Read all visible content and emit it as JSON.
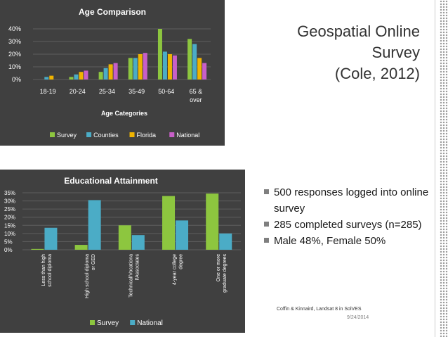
{
  "slide": {
    "title_lines": [
      "Geospatial Online",
      "Survey",
      "(Cole, 2012)"
    ],
    "bullets": [
      "500 responses logged into online survey",
      "285 completed surveys (n=285)",
      "Male 48%, Female 50%"
    ],
    "credit": "Coffin & Kinnaird, Landsat 8 in SolVES",
    "date": "9/24/2014"
  },
  "chart_data": [
    {
      "type": "bar",
      "title": "Age Comparison",
      "xlabel": "Age Categories",
      "ylabel": "",
      "ylim": [
        0,
        40
      ],
      "yticks": [
        "0%",
        "10%",
        "20%",
        "30%",
        "40%"
      ],
      "grid": true,
      "legend_position": "bottom",
      "categories": [
        [
          "18-19"
        ],
        [
          "20-24"
        ],
        [
          "25-34"
        ],
        [
          "35-49"
        ],
        [
          "50-64"
        ],
        [
          "65 &",
          "over"
        ]
      ],
      "series": [
        {
          "name": "Survey",
          "color": "#8dc63f",
          "values": [
            0,
            2,
            6,
            17,
            40,
            32
          ]
        },
        {
          "name": "Counties",
          "color": "#4bacc6",
          "values": [
            2,
            4,
            9,
            17,
            22,
            28
          ]
        },
        {
          "name": "Florida",
          "color": "#f0b400",
          "values": [
            3,
            6,
            12,
            20,
            20,
            17
          ]
        },
        {
          "name": "National",
          "color": "#c85fc8",
          "values": [
            0,
            7,
            13,
            21,
            19,
            13
          ]
        }
      ]
    },
    {
      "type": "bar",
      "title": "Educational Attainment",
      "xlabel": "",
      "ylabel": "",
      "ylim": [
        0,
        35
      ],
      "yticks": [
        "0%",
        "5%",
        "10%",
        "15%",
        "20%",
        "25%",
        "30%",
        "35%"
      ],
      "grid": true,
      "legend_position": "bottom",
      "categories": [
        [
          "Less than high",
          "school diploma"
        ],
        [
          "High school diploma",
          "or GED"
        ],
        [
          "Technical/Vocationa",
          "l/Associates"
        ],
        [
          "4-year college",
          "degree"
        ],
        [
          "One or more",
          "graduate degrees"
        ]
      ],
      "series": [
        {
          "name": "Survey",
          "color": "#8dc63f",
          "values": [
            0.5,
            3,
            15,
            33,
            34.5
          ]
        },
        {
          "name": "National",
          "color": "#4bacc6",
          "values": [
            13.5,
            30.5,
            9,
            18,
            10
          ]
        }
      ]
    }
  ]
}
